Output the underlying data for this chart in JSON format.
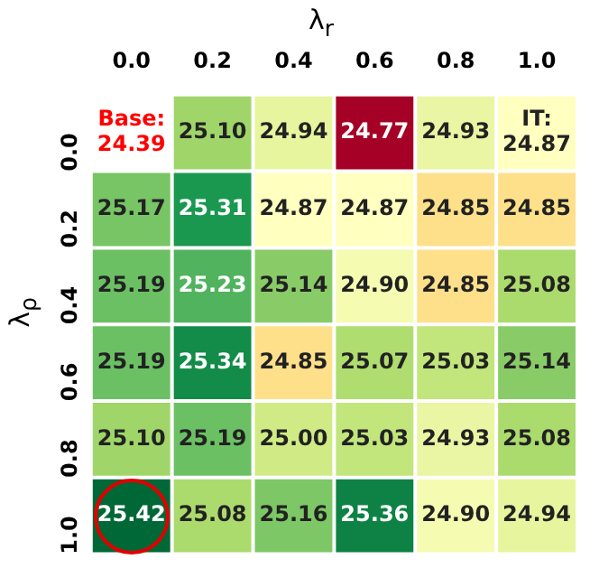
{
  "chart_data": {
    "type": "heatmap",
    "xlabel": "λ$_{r}$",
    "ylabel": "λ$_{ρ}$",
    "categories": [
      "0.0",
      "0.2",
      "0.4",
      "0.6",
      "0.8",
      "1.0"
    ],
    "y_categories": [
      "0.0",
      "0.2",
      "0.4",
      "0.6",
      "0.8",
      "1.0"
    ],
    "cells": [
      [
        null,
        25.1,
        24.94,
        24.77,
        24.93,
        24.87
      ],
      [
        25.17,
        25.31,
        24.87,
        24.87,
        24.85,
        24.85
      ],
      [
        25.19,
        25.23,
        25.14,
        24.9,
        24.85,
        25.08
      ],
      [
        25.19,
        25.34,
        24.85,
        25.07,
        25.03,
        25.14
      ],
      [
        25.1,
        25.19,
        25.0,
        25.03,
        24.93,
        25.08
      ],
      [
        25.42,
        25.08,
        25.16,
        25.36,
        24.9,
        24.94
      ]
    ],
    "cell_labels": [
      [
        "Base:\n24.39",
        "25.10",
        "24.94",
        "24.77",
        "24.93",
        "IT:\n24.87"
      ],
      [
        "25.17",
        "25.31",
        "24.87",
        "24.87",
        "24.85",
        "24.85"
      ],
      [
        "25.19",
        "25.23",
        "25.14",
        "24.90",
        "24.85",
        "25.08"
      ],
      [
        "25.19",
        "25.34",
        "24.85",
        "25.07",
        "25.03",
        "25.14"
      ],
      [
        "25.10",
        "25.19",
        "25.00",
        "25.03",
        "24.93",
        "25.08"
      ],
      [
        "25.42",
        "25.08",
        "25.16",
        "25.36",
        "24.90",
        "24.94"
      ]
    ]
  }
}
